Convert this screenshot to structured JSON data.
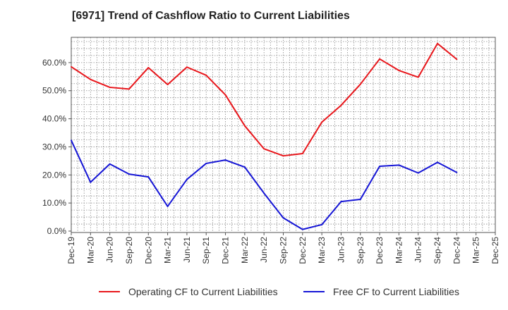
{
  "chart_data": {
    "type": "line",
    "title": "[6971]  Trend of Cashflow Ratio to Current Liabilities",
    "xlabel": "",
    "ylabel": "",
    "x_ticks": [
      "Dec-19",
      "Mar-20",
      "Jun-20",
      "Sep-20",
      "Dec-20",
      "Mar-21",
      "Jun-21",
      "Sep-21",
      "Dec-21",
      "Mar-22",
      "Jun-22",
      "Sep-22",
      "Dec-22",
      "Mar-23",
      "Jun-23",
      "Sep-23",
      "Dec-23",
      "Mar-24",
      "Jun-24",
      "Sep-24",
      "Dec-24",
      "Mar-25",
      "Dec-25"
    ],
    "y_ticks": [
      "0.0%",
      "10.0%",
      "20.0%",
      "30.0%",
      "40.0%",
      "50.0%",
      "60.0%"
    ],
    "ylim": [
      -0.5,
      69
    ],
    "grid": true,
    "legend_position": "bottom",
    "categories": [
      "Dec-19",
      "Mar-20",
      "Jun-20",
      "Sep-20",
      "Dec-20",
      "Mar-21",
      "Jun-21",
      "Sep-21",
      "Dec-21",
      "Mar-22",
      "Jun-22",
      "Sep-22",
      "Dec-22",
      "Mar-23",
      "Jun-23",
      "Sep-23",
      "Dec-23",
      "Mar-24",
      "Jun-24",
      "Sep-24",
      "Dec-24"
    ],
    "series": [
      {
        "name": "Operating CF to Current Liabilities",
        "color": "#e8161b",
        "values": [
          58.5,
          54.0,
          51.2,
          50.6,
          58.2,
          52.2,
          58.4,
          55.5,
          48.5,
          37.5,
          29.3,
          26.8,
          27.6,
          38.8,
          44.8,
          52.3,
          61.3,
          57.2,
          54.8,
          66.8,
          61.2
        ]
      },
      {
        "name": "Free CF to Current Liabilities",
        "color": "#1515d6",
        "values": [
          32.3,
          17.4,
          23.9,
          20.3,
          19.3,
          8.8,
          18.4,
          24.1,
          25.3,
          22.8,
          13.5,
          4.7,
          0.6,
          2.3,
          10.5,
          11.3,
          23.1,
          23.5,
          20.7,
          24.5,
          20.9
        ]
      }
    ]
  }
}
